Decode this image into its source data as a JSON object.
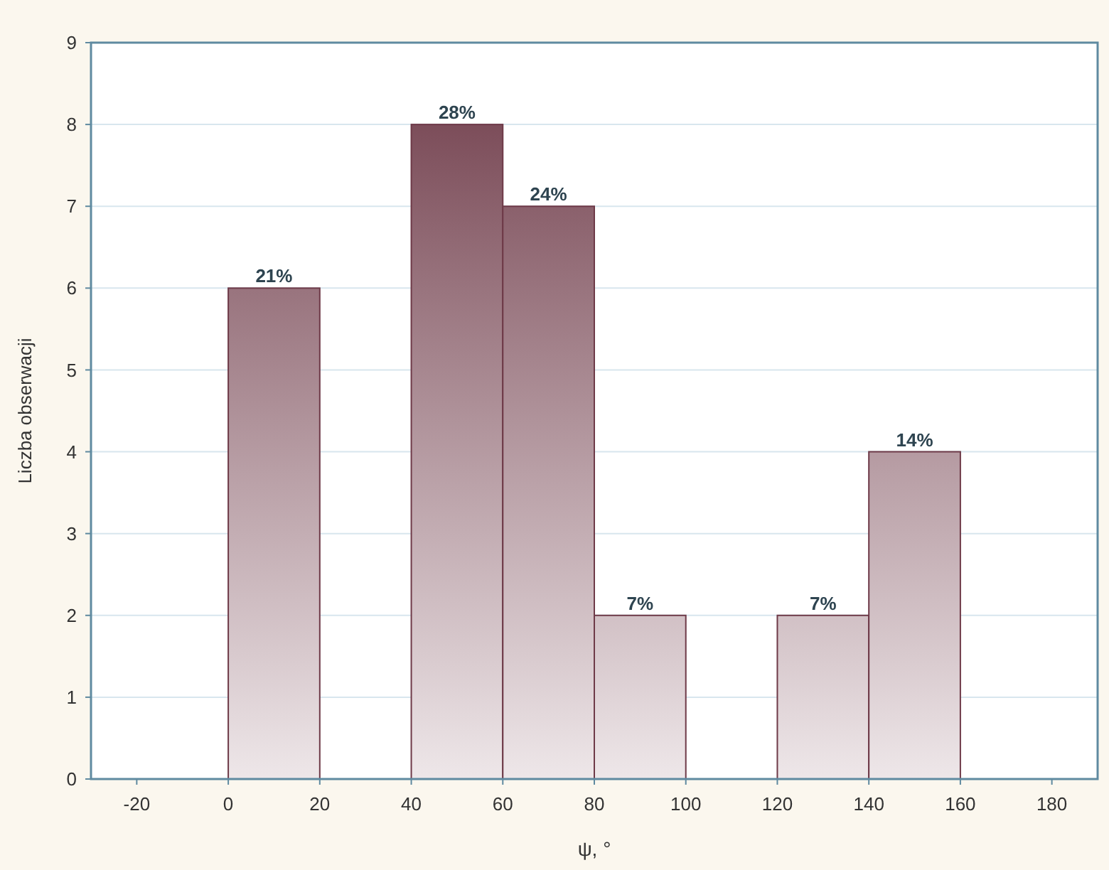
{
  "chart_data": {
    "type": "histogram",
    "xlabel": "ψ, °",
    "ylabel": "Liczba obserwacji",
    "bins": [
      0,
      20,
      40,
      60,
      80,
      100,
      120,
      140,
      160
    ],
    "values": [
      6,
      0,
      8,
      7,
      2,
      0,
      2,
      4
    ],
    "annotations": [
      {
        "text": "21%",
        "x": 10,
        "y": 6
      },
      {
        "text": "28%",
        "x": 50,
        "y": 8
      },
      {
        "text": "24%",
        "x": 70,
        "y": 7
      },
      {
        "text": "7%",
        "x": 90,
        "y": 2
      },
      {
        "text": "7%",
        "x": 130,
        "y": 2
      },
      {
        "text": "14%",
        "x": 150,
        "y": 4
      }
    ],
    "color": "#6e3a48",
    "xlim": [
      -30,
      190
    ],
    "xticks": [
      -20,
      0,
      20,
      40,
      60,
      80,
      100,
      120,
      140,
      160,
      180
    ],
    "ylim": [
      0,
      9
    ],
    "yticks": [
      0,
      1,
      2,
      3,
      4,
      5,
      6,
      7,
      8,
      9
    ],
    "grid": "y"
  }
}
